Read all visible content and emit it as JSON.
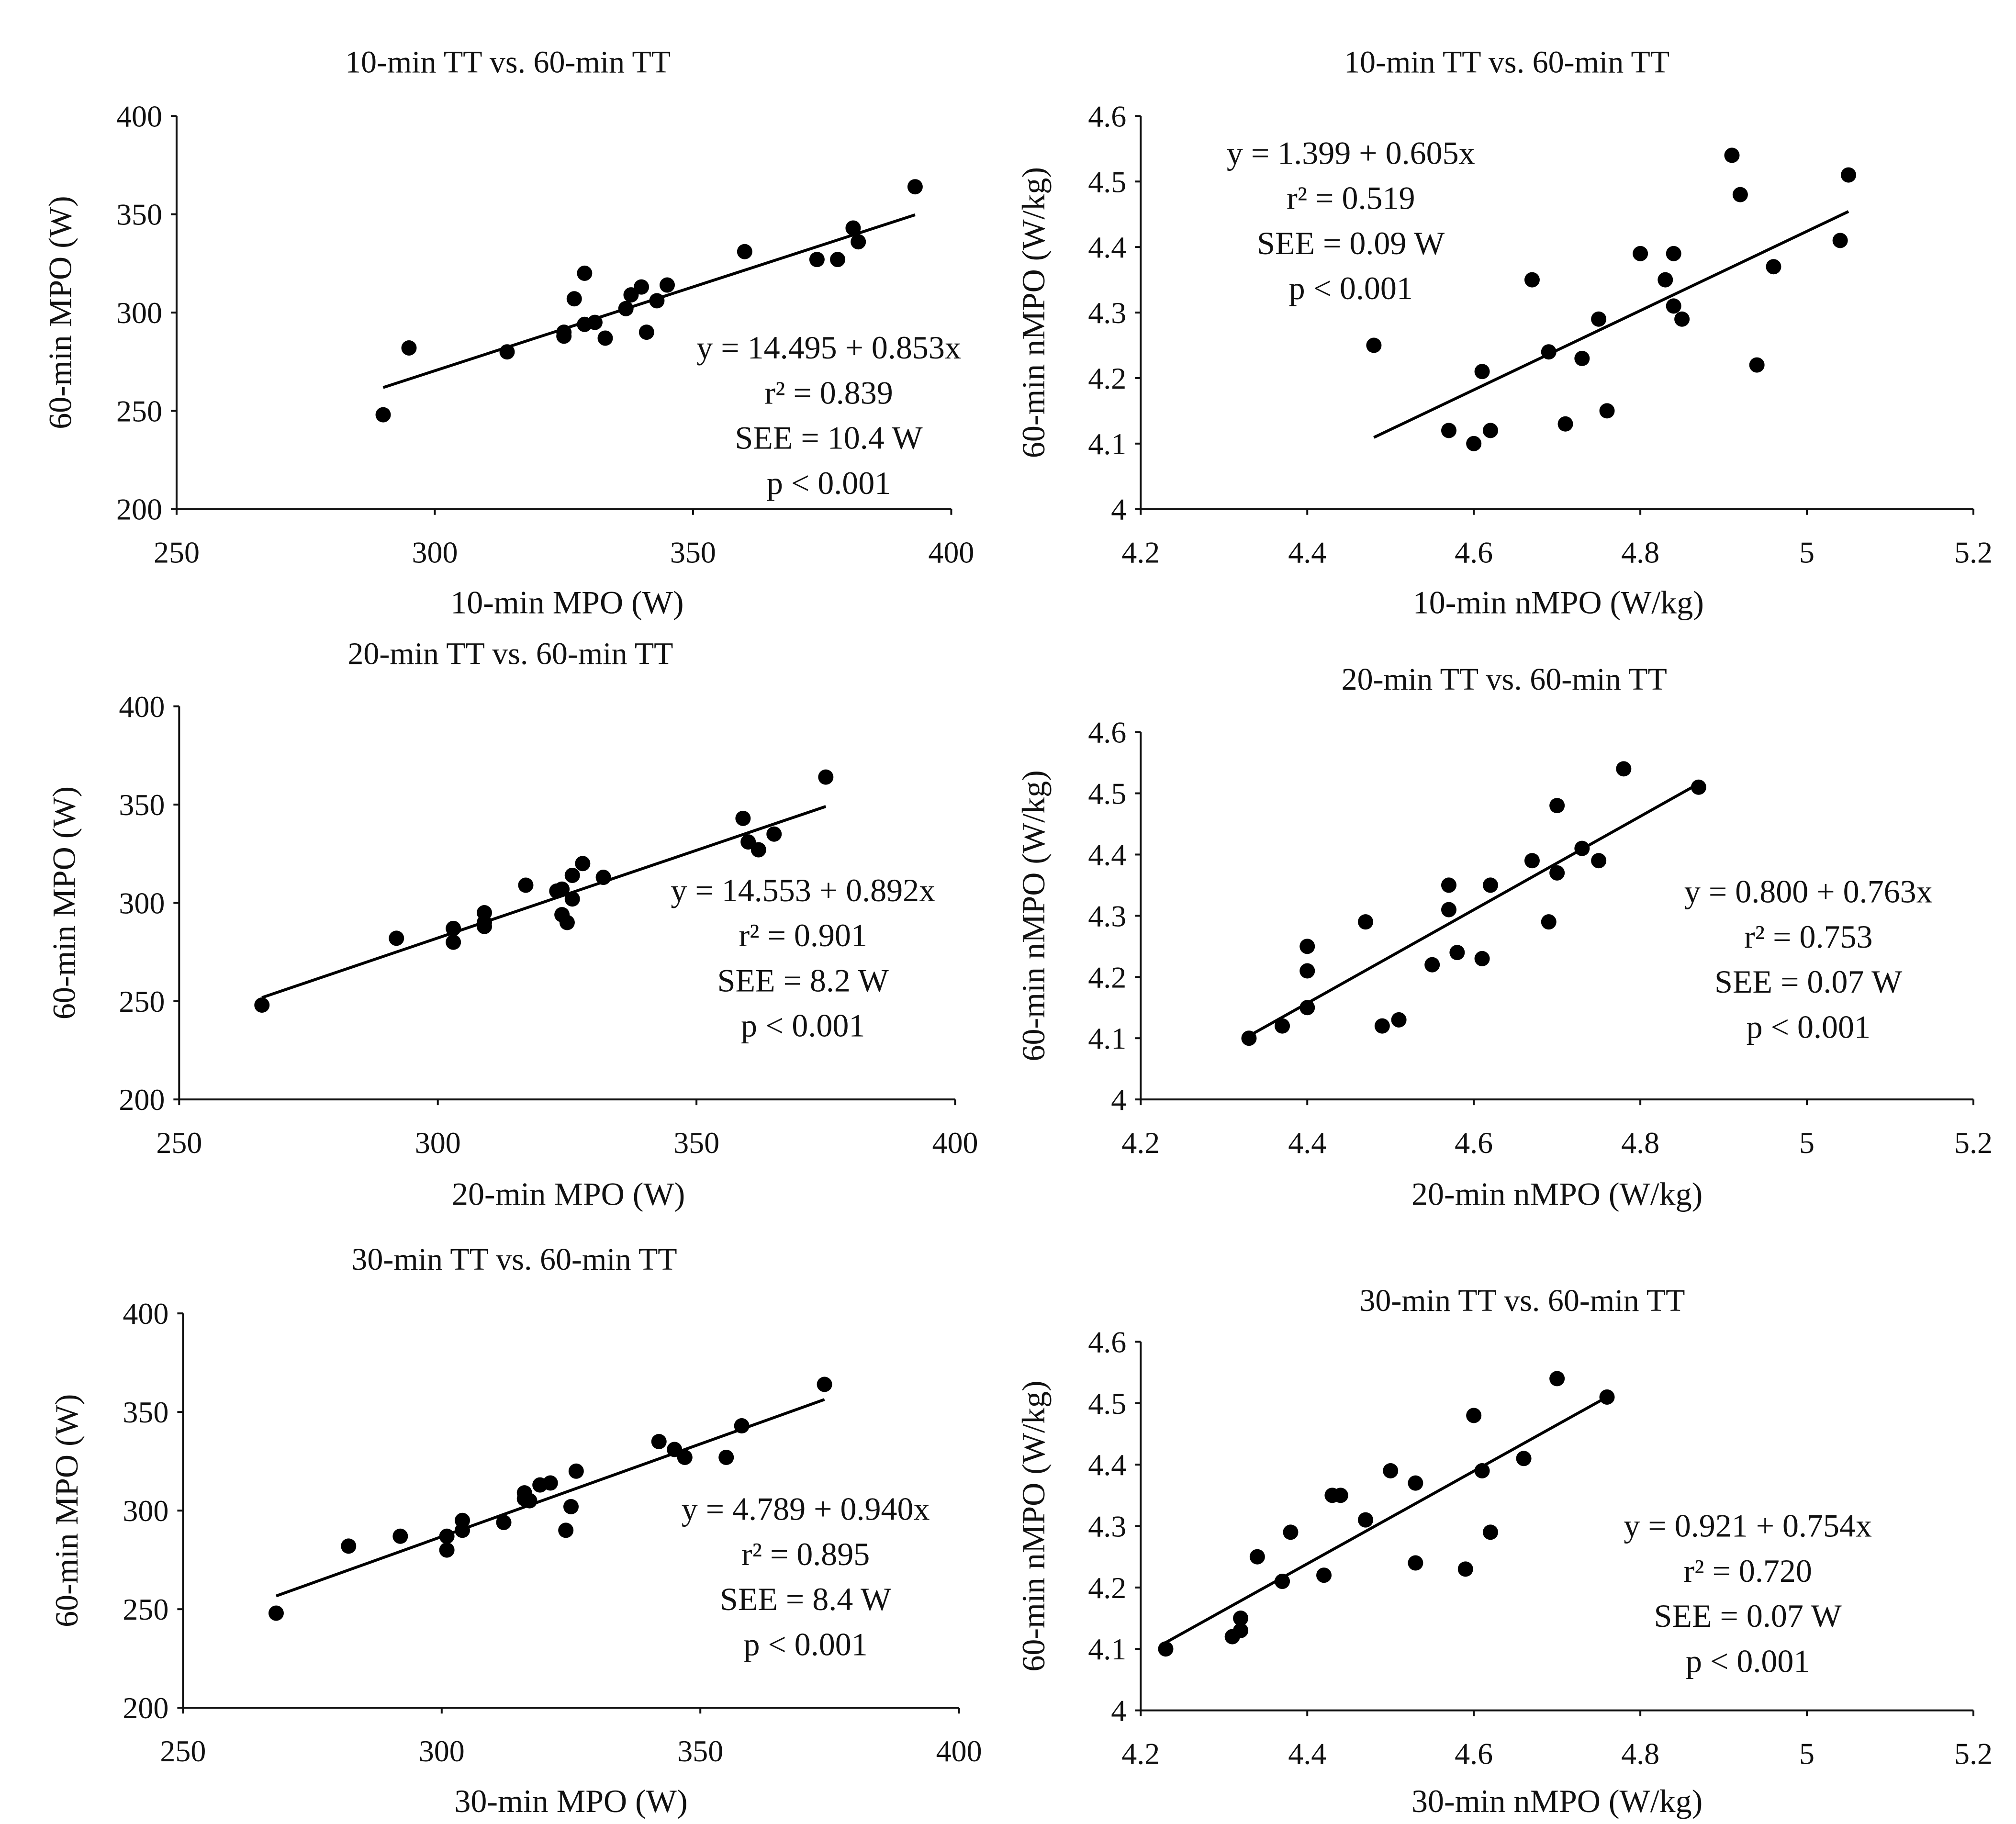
{
  "figure": "six scatter plots comparing time-trial mean power output against 60-min time trial",
  "chart_data": [
    {
      "type": "scatter",
      "title": "10-min TT vs. 60-min TT",
      "xlabel": "10-min MPO (W)",
      "ylabel": "60-min MPO (W)",
      "xlim": [
        250,
        400
      ],
      "ylim": [
        200,
        400
      ],
      "x_ticks": [
        "250",
        "300",
        "350",
        "400"
      ],
      "y_ticks": [
        "200",
        "250",
        "300",
        "350",
        "400"
      ],
      "points": [
        [
          290,
          248
        ],
        [
          295,
          282
        ],
        [
          314,
          280
        ],
        [
          325,
          290
        ],
        [
          325,
          288
        ],
        [
          327,
          307
        ],
        [
          329,
          320
        ],
        [
          329,
          294
        ],
        [
          331,
          295
        ],
        [
          333,
          287
        ],
        [
          337,
          302
        ],
        [
          338,
          309
        ],
        [
          340,
          313
        ],
        [
          341,
          290
        ],
        [
          343,
          306
        ],
        [
          345,
          314
        ],
        [
          360,
          331
        ],
        [
          374,
          327
        ],
        [
          378,
          327
        ],
        [
          381,
          343
        ],
        [
          382,
          336
        ],
        [
          393,
          364
        ]
      ],
      "trendline": {
        "x_start": 290,
        "x_end": 393,
        "intercept": 14.495,
        "slope": 0.853
      },
      "stats": [
        "y = 14.495 + 0.853x",
        "r² = 0.839",
        "SEE = 10.4 W",
        "p < 0.001"
      ]
    },
    {
      "type": "scatter",
      "title": "10-min TT vs. 60-min TT",
      "xlabel": "10-min nMPO (W/kg)",
      "ylabel": "60-min nMPO (W/kg)",
      "xlim": [
        4.2,
        5.2
      ],
      "ylim": [
        4.0,
        4.6
      ],
      "x_ticks": [
        "4.2",
        "4.4",
        "4.6",
        "4.8",
        "5",
        "5.2"
      ],
      "y_ticks": [
        "4",
        "4.1",
        "4.2",
        "4.3",
        "4.4",
        "4.5",
        "4.6"
      ],
      "points": [
        [
          4.48,
          4.25
        ],
        [
          4.57,
          4.12
        ],
        [
          4.6,
          4.1
        ],
        [
          4.61,
          4.21
        ],
        [
          4.62,
          4.12
        ],
        [
          4.67,
          4.35
        ],
        [
          4.69,
          4.24
        ],
        [
          4.71,
          4.13
        ],
        [
          4.73,
          4.23
        ],
        [
          4.75,
          4.29
        ],
        [
          4.76,
          4.15
        ],
        [
          4.8,
          4.39
        ],
        [
          4.83,
          4.35
        ],
        [
          4.84,
          4.39
        ],
        [
          4.84,
          4.31
        ],
        [
          4.85,
          4.29
        ],
        [
          4.91,
          4.54
        ],
        [
          4.92,
          4.48
        ],
        [
          4.94,
          4.22
        ],
        [
          4.96,
          4.37
        ],
        [
          5.04,
          4.41
        ],
        [
          5.05,
          4.51
        ]
      ],
      "trendline": {
        "x_start": 4.48,
        "x_end": 5.05,
        "intercept": 1.399,
        "slope": 0.605
      },
      "stats": [
        "y = 1.399 + 0.605x",
        "r² = 0.519",
        "SEE = 0.09 W",
        "p < 0.001"
      ]
    },
    {
      "type": "scatter",
      "title": "20-min TT vs. 60-min TT",
      "xlabel": "20-min MPO (W)",
      "ylabel": "60-min MPO (W)",
      "xlim": [
        250,
        400
      ],
      "ylim": [
        200,
        400
      ],
      "x_ticks": [
        "250",
        "300",
        "350",
        "400"
      ],
      "y_ticks": [
        "200",
        "250",
        "300",
        "350",
        "400"
      ],
      "points": [
        [
          266,
          248
        ],
        [
          292,
          282
        ],
        [
          303,
          287
        ],
        [
          303,
          280
        ],
        [
          309,
          295
        ],
        [
          309,
          290
        ],
        [
          309,
          288
        ],
        [
          317,
          309
        ],
        [
          323,
          306
        ],
        [
          324,
          294
        ],
        [
          324,
          307
        ],
        [
          325,
          290
        ],
        [
          326,
          314
        ],
        [
          326,
          302
        ],
        [
          328,
          320
        ],
        [
          332,
          313
        ],
        [
          359,
          343
        ],
        [
          360,
          331
        ],
        [
          362,
          327
        ],
        [
          365,
          335
        ],
        [
          375,
          364
        ]
      ],
      "trendline": {
        "x_start": 266,
        "x_end": 375,
        "intercept": 14.553,
        "slope": 0.892
      },
      "stats": [
        "y = 14.553 + 0.892x",
        "r² = 0.901",
        "SEE = 8.2 W",
        "p < 0.001"
      ]
    },
    {
      "type": "scatter",
      "title": "20-min TT vs. 60-min TT",
      "xlabel": "20-min nMPO (W/kg)",
      "ylabel": "60-min nMPO (W/kg)",
      "xlim": [
        4.2,
        5.2
      ],
      "ylim": [
        4.0,
        4.6
      ],
      "x_ticks": [
        "4.2",
        "4.4",
        "4.6",
        "4.8",
        "5",
        "5.2"
      ],
      "y_ticks": [
        "4",
        "4.1",
        "4.2",
        "4.3",
        "4.4",
        "4.5",
        "4.6"
      ],
      "points": [
        [
          4.33,
          4.1
        ],
        [
          4.37,
          4.12
        ],
        [
          4.4,
          4.25
        ],
        [
          4.4,
          4.21
        ],
        [
          4.4,
          4.15
        ],
        [
          4.47,
          4.29
        ],
        [
          4.49,
          4.12
        ],
        [
          4.51,
          4.13
        ],
        [
          4.55,
          4.22
        ],
        [
          4.57,
          4.35
        ],
        [
          4.57,
          4.31
        ],
        [
          4.58,
          4.24
        ],
        [
          4.61,
          4.23
        ],
        [
          4.62,
          4.35
        ],
        [
          4.67,
          4.39
        ],
        [
          4.69,
          4.29
        ],
        [
          4.7,
          4.48
        ],
        [
          4.7,
          4.37
        ],
        [
          4.73,
          4.41
        ],
        [
          4.75,
          4.39
        ],
        [
          4.78,
          4.54
        ],
        [
          4.87,
          4.51
        ]
      ],
      "trendline": {
        "x_start": 4.33,
        "x_end": 4.87,
        "intercept": 0.8,
        "slope": 0.763
      },
      "stats": [
        "y = 0.800 + 0.763x",
        "r² = 0.753",
        "SEE = 0.07 W",
        "p < 0.001"
      ]
    },
    {
      "type": "scatter",
      "title": "30-min TT vs. 60-min TT",
      "xlabel": "30-min MPO (W)",
      "ylabel": "60-min MPO (W)",
      "xlim": [
        250,
        400
      ],
      "ylim": [
        200,
        400
      ],
      "x_ticks": [
        "250",
        "300",
        "350",
        "400"
      ],
      "y_ticks": [
        "200",
        "250",
        "300",
        "350",
        "400"
      ],
      "points": [
        [
          268,
          248
        ],
        [
          282,
          282
        ],
        [
          292,
          287
        ],
        [
          301,
          287
        ],
        [
          301,
          280
        ],
        [
          304,
          295
        ],
        [
          304,
          290
        ],
        [
          312,
          294
        ],
        [
          316,
          309
        ],
        [
          316,
          306
        ],
        [
          317,
          305
        ],
        [
          319,
          313
        ],
        [
          321,
          314
        ],
        [
          324,
          290
        ],
        [
          325,
          302
        ],
        [
          326,
          320
        ],
        [
          342,
          335
        ],
        [
          345,
          331
        ],
        [
          347,
          327
        ],
        [
          355,
          327
        ],
        [
          358,
          343
        ],
        [
          374,
          364
        ]
      ],
      "trendline": {
        "x_start": 268,
        "x_end": 374,
        "intercept": 4.789,
        "slope": 0.94
      },
      "stats": [
        "y = 4.789 + 0.940x",
        "r² = 0.895",
        "SEE = 8.4 W",
        "p < 0.001"
      ]
    },
    {
      "type": "scatter",
      "title": "30-min TT vs. 60-min TT",
      "xlabel": "30-min nMPO (W/kg)",
      "ylabel": "60-min nMPO (W/kg)",
      "xlim": [
        4.2,
        5.2
      ],
      "ylim": [
        4.0,
        4.6
      ],
      "x_ticks": [
        "4.2",
        "4.4",
        "4.6",
        "4.8",
        "5",
        "5.2"
      ],
      "y_ticks": [
        "4",
        "4.1",
        "4.2",
        "4.3",
        "4.4",
        "4.5",
        "4.6"
      ],
      "points": [
        [
          4.23,
          4.1
        ],
        [
          4.31,
          4.12
        ],
        [
          4.32,
          4.13
        ],
        [
          4.32,
          4.15
        ],
        [
          4.34,
          4.25
        ],
        [
          4.37,
          4.21
        ],
        [
          4.38,
          4.29
        ],
        [
          4.42,
          4.22
        ],
        [
          4.43,
          4.35
        ],
        [
          4.44,
          4.35
        ],
        [
          4.47,
          4.31
        ],
        [
          4.5,
          4.39
        ],
        [
          4.53,
          4.37
        ],
        [
          4.53,
          4.24
        ],
        [
          4.59,
          4.23
        ],
        [
          4.6,
          4.48
        ],
        [
          4.61,
          4.39
        ],
        [
          4.62,
          4.29
        ],
        [
          4.66,
          4.41
        ],
        [
          4.7,
          4.54
        ],
        [
          4.76,
          4.51
        ]
      ],
      "trendline": {
        "x_start": 4.23,
        "x_end": 4.76,
        "intercept": 0.921,
        "slope": 0.754
      },
      "stats": [
        "y = 0.921 + 0.754x",
        "r² = 0.720",
        "SEE = 0.07 W",
        "p < 0.001"
      ]
    }
  ]
}
